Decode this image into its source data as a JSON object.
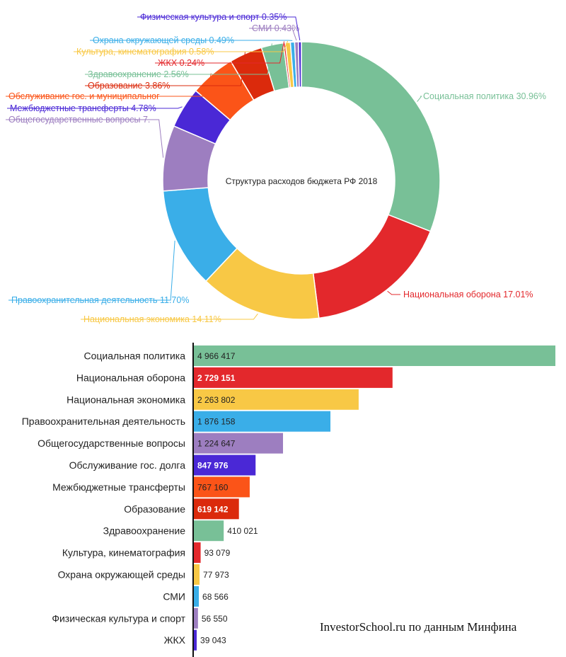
{
  "watermark": "InvestorSchool.ru по данным Минфина",
  "chart_data": [
    {
      "type": "pie",
      "title": "Структура расходов бюджета РФ 2018",
      "slices": [
        {
          "label": "Социальная политика 30.96%",
          "value": 30.96,
          "color": "#78c097"
        },
        {
          "label": "Национальная оборона 17.01%",
          "value": 17.01,
          "color": "#e3282c"
        },
        {
          "label": "Национальная экономика 14.11%",
          "value": 14.11,
          "color": "#f8c845"
        },
        {
          "label": "Правоохранительная деятельность 11.70%",
          "value": 11.7,
          "color": "#3aaee8"
        },
        {
          "label": "Общегосударственные вопросы 7.",
          "value": 7.63,
          "color": "#9d7ec0"
        },
        {
          "label": "Межбюджетные трансферты 4.78%",
          "value": 4.78,
          "color": "#4a28d6"
        },
        {
          "label": "Обслуживание гос. и муниципальног",
          "value": 5.28,
          "color": "#fb5418"
        },
        {
          "label": "Образование 3.86%",
          "value": 3.86,
          "color": "#db2a0c"
        },
        {
          "label": "Здравоохранение 2.56%",
          "value": 2.56,
          "color": "#78c097"
        },
        {
          "label": "ЖКХ 0.24%",
          "value": 0.24,
          "color": "#e3282c"
        },
        {
          "label": "Культура, кинематография 0.58%",
          "value": 0.58,
          "color": "#f8c845"
        },
        {
          "label": "Охрана окружающей среды 0.49%",
          "value": 0.49,
          "color": "#3aaee8"
        },
        {
          "label": "СМИ 0.43%",
          "value": 0.43,
          "color": "#9d7ec0"
        },
        {
          "label": "Физическая культура и спорт 0.35%",
          "value": 0.35,
          "color": "#4a28d6"
        }
      ]
    },
    {
      "type": "bar",
      "orientation": "horizontal",
      "categories": [
        "Социальная политика",
        "Национальная оборона",
        "Национальная экономика",
        "Правоохранительная деятельность",
        "Общегосударственные вопросы",
        "Обслуживание гос. долга",
        "Межбюджетные трансферты",
        "Образование",
        "Здравоохранение",
        "Культура, кинематография",
        "Охрана окружающей среды",
        "СМИ",
        "Физическая культура и спорт",
        "ЖКХ"
      ],
      "values": [
        4966417,
        2729151,
        2263802,
        1876158,
        1224647,
        847976,
        767160,
        619142,
        410021,
        93079,
        77973,
        68566,
        56550,
        39043
      ],
      "value_labels": [
        "4 966 417",
        "2 729 151",
        "2 263 802",
        "1 876 158",
        "1 224 647",
        "847 976",
        "767 160",
        "619 142",
        "410 021",
        "93 079",
        "77 973",
        "68 566",
        "56 550",
        "39 043"
      ],
      "colors": [
        "#78c097",
        "#e3282c",
        "#f8c845",
        "#3aaee8",
        "#9d7ec0",
        "#4a28d6",
        "#fb5418",
        "#db2a0c",
        "#78c097",
        "#e3282c",
        "#f8c845",
        "#3aaee8",
        "#9d7ec0",
        "#4a28d6"
      ],
      "label_white": [
        false,
        true,
        false,
        false,
        false,
        true,
        false,
        true,
        false,
        false,
        false,
        false,
        false,
        false
      ]
    }
  ]
}
